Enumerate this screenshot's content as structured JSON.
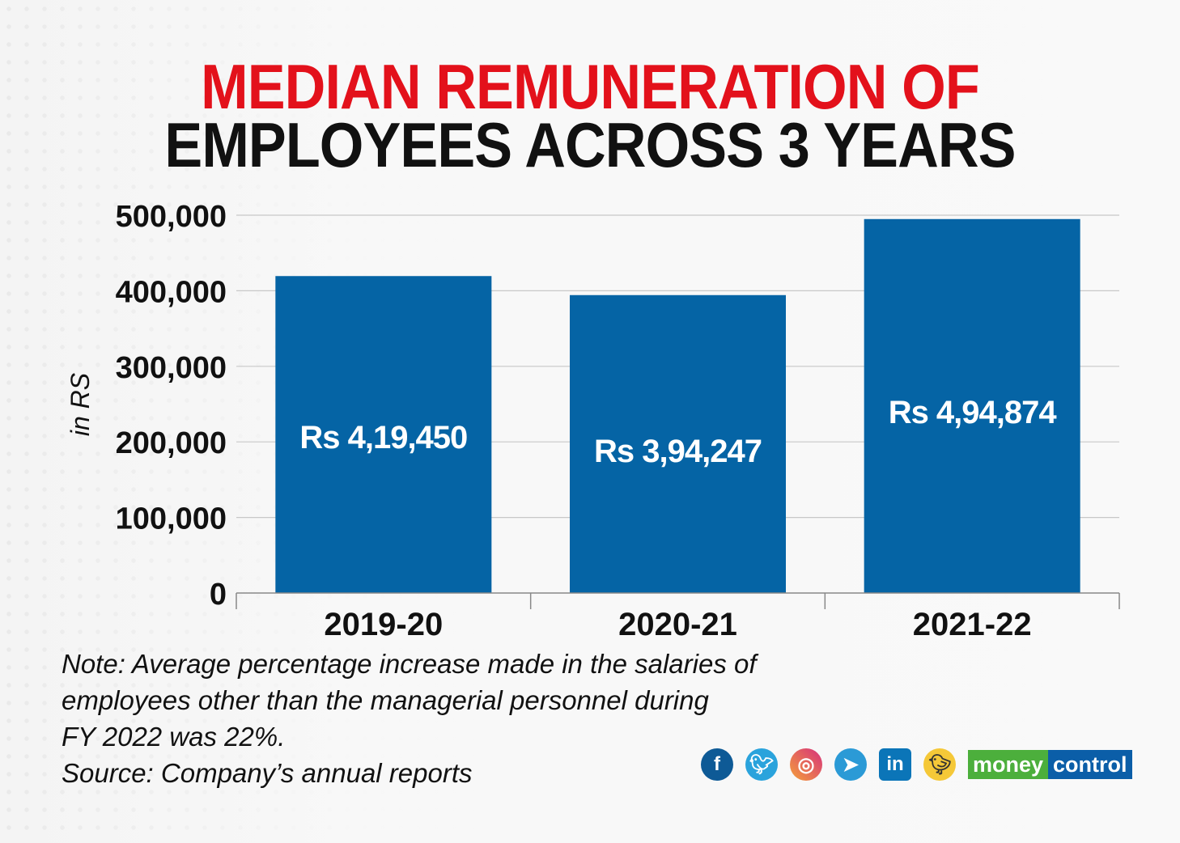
{
  "title": {
    "line1": "MEDIAN REMUNERATION OF",
    "line2": "EMPLOYEES ACROSS 3 YEARS"
  },
  "chart_data": {
    "type": "bar",
    "title": "MEDIAN REMUNERATION OF EMPLOYEES ACROSS 3 YEARS",
    "categories": [
      "2019-20",
      "2020-21",
      "2021-22"
    ],
    "values": [
      419450,
      394247,
      494874
    ],
    "data_labels": [
      "Rs 4,19,450",
      "Rs 3,94,247",
      "Rs  4,94,874"
    ],
    "xlabel": "",
    "ylabel": "in RS",
    "ylim": [
      0,
      500000
    ],
    "yticks": [
      0,
      100000,
      200000,
      300000,
      400000,
      500000
    ],
    "ytick_labels": [
      "0",
      "100,000",
      "200,000",
      "300,000",
      "400,000",
      "500,000"
    ],
    "grid": true,
    "bar_color": "#0564a5"
  },
  "note": {
    "lines": [
      "Note: Average percentage increase made in the salaries of",
      "employees other than the managerial personnel during",
      "FY 2022 was 22%."
    ],
    "source": "Source: Company’s annual reports"
  },
  "footer": {
    "icons": [
      "facebook-icon",
      "twitter-icon",
      "instagram-icon",
      "telegram-icon",
      "linkedin-icon",
      "koo-icon"
    ],
    "logo": {
      "part1": "money",
      "part2": "control"
    }
  }
}
